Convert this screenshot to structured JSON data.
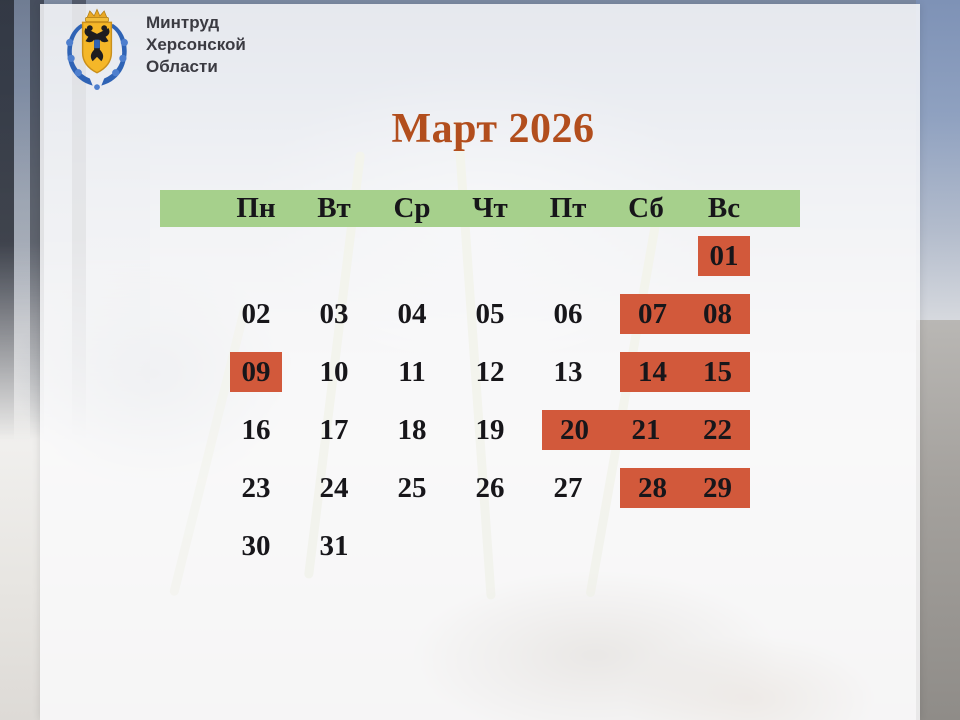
{
  "logo": {
    "icon": "kherson-coat-of-arms",
    "org_line1": "Минтруд",
    "org_line2": "Херсонской",
    "org_line3": "Области"
  },
  "title": "Март 2026",
  "calendar": {
    "day_headers": [
      "Пн",
      "Вт",
      "Ср",
      "Чт",
      "Пт",
      "Сб",
      "Вс"
    ],
    "weeks": [
      [
        {
          "d": "",
          "hl": false
        },
        {
          "d": "",
          "hl": false
        },
        {
          "d": "",
          "hl": false
        },
        {
          "d": "",
          "hl": false
        },
        {
          "d": "",
          "hl": false
        },
        {
          "d": "",
          "hl": false
        },
        {
          "d": "01",
          "hl": true
        }
      ],
      [
        {
          "d": "02",
          "hl": false
        },
        {
          "d": "03",
          "hl": false
        },
        {
          "d": "04",
          "hl": false
        },
        {
          "d": "05",
          "hl": false
        },
        {
          "d": "06",
          "hl": false
        },
        {
          "d": "07",
          "hl": true
        },
        {
          "d": "08",
          "hl": true
        }
      ],
      [
        {
          "d": "09",
          "hl": true
        },
        {
          "d": "10",
          "hl": false
        },
        {
          "d": "11",
          "hl": false
        },
        {
          "d": "12",
          "hl": false
        },
        {
          "d": "13",
          "hl": false
        },
        {
          "d": "14",
          "hl": true
        },
        {
          "d": "15",
          "hl": true
        }
      ],
      [
        {
          "d": "16",
          "hl": false
        },
        {
          "d": "17",
          "hl": false
        },
        {
          "d": "18",
          "hl": false
        },
        {
          "d": "19",
          "hl": false
        },
        {
          "d": "20",
          "hl": true
        },
        {
          "d": "21",
          "hl": true
        },
        {
          "d": "22",
          "hl": true
        }
      ],
      [
        {
          "d": "23",
          "hl": false
        },
        {
          "d": "24",
          "hl": false
        },
        {
          "d": "25",
          "hl": false
        },
        {
          "d": "26",
          "hl": false
        },
        {
          "d": "27",
          "hl": false
        },
        {
          "d": "28",
          "hl": true
        },
        {
          "d": "29",
          "hl": true
        }
      ],
      [
        {
          "d": "30",
          "hl": false
        },
        {
          "d": "31",
          "hl": false
        },
        {
          "d": "",
          "hl": false
        },
        {
          "d": "",
          "hl": false
        },
        {
          "d": "",
          "hl": false
        },
        {
          "d": "",
          "hl": false
        },
        {
          "d": "",
          "hl": false
        }
      ]
    ]
  },
  "colors": {
    "green_header": "#a6d08c",
    "holiday_red": "#d2593b",
    "title_rust": "#b24e1d",
    "text_dark": "#17161a",
    "org_text": "#3b3b42"
  }
}
